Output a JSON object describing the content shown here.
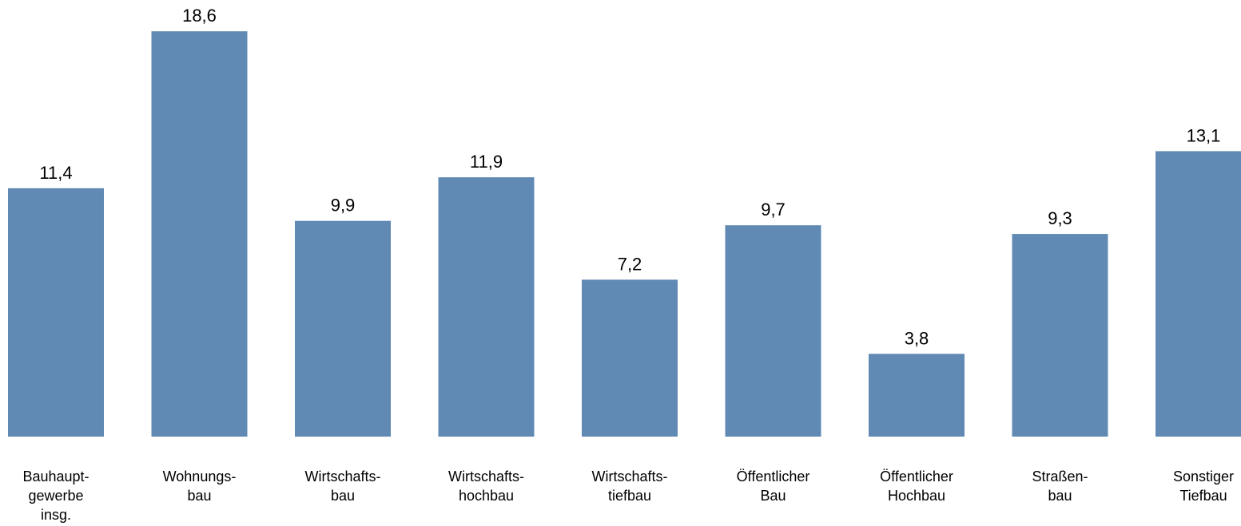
{
  "chart_data": {
    "type": "bar",
    "title": "",
    "xlabel": "",
    "ylabel": "",
    "ylim": [
      0,
      19.6
    ],
    "grid": false,
    "legend": "none",
    "categories": [
      [
        "Bauhaupt-",
        "gewerbe",
        "insg."
      ],
      [
        "Wohnungs-",
        "bau"
      ],
      [
        "Wirtschafts-",
        "bau"
      ],
      [
        "Wirtschafts-",
        "hochbau"
      ],
      [
        "Wirtschafts-",
        "tiefbau"
      ],
      [
        "Öffentlicher",
        "Bau"
      ],
      [
        "Öffentlicher",
        "Hochbau"
      ],
      [
        "Straßen-",
        "bau"
      ],
      [
        "Sonstiger",
        "Tiefbau"
      ]
    ],
    "values": [
      11.4,
      18.6,
      9.9,
      11.9,
      7.2,
      9.7,
      3.8,
      9.3,
      13.1
    ],
    "value_labels": [
      "11,4",
      "18,6",
      "9,9",
      "11,9",
      "7,2",
      "9,7",
      "3,8",
      "9,3",
      "13,1"
    ],
    "colors": {
      "bar": "#6089b4"
    }
  }
}
